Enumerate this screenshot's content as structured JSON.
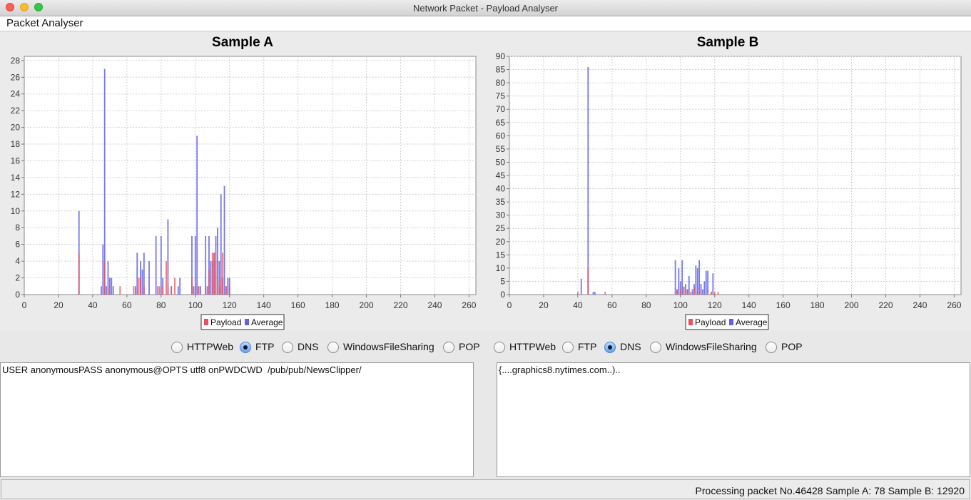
{
  "window": {
    "title": "Network Packet - Payload Analyser"
  },
  "menu": {
    "items": [
      "Packet Analyser"
    ]
  },
  "charts": [
    {
      "title": "Sample A",
      "type": "bar",
      "xlim": [
        0,
        264
      ],
      "ylim": [
        0,
        28.5
      ],
      "xticks": [
        0,
        20,
        40,
        60,
        80,
        100,
        120,
        140,
        160,
        180,
        200,
        220,
        240,
        260
      ],
      "yticks": [
        0,
        2,
        4,
        6,
        8,
        10,
        12,
        14,
        16,
        18,
        20,
        22,
        24,
        26,
        28
      ],
      "grid": true,
      "legend": {
        "position": "bottom-center",
        "entries": [
          "Payload",
          "Average"
        ]
      },
      "series": [
        {
          "name": "Payload",
          "color": "#e8515b",
          "points": [
            [
              32,
              5
            ],
            [
              47,
              4
            ],
            [
              49,
              1
            ],
            [
              56,
              1
            ],
            [
              64,
              1
            ],
            [
              67,
              2
            ],
            [
              68,
              2
            ],
            [
              70,
              1
            ],
            [
              78,
              1
            ],
            [
              79,
              1
            ],
            [
              81,
              1
            ],
            [
              83,
              4
            ],
            [
              84,
              1
            ],
            [
              86,
              1
            ],
            [
              88,
              2
            ],
            [
              98,
              2
            ],
            [
              100,
              1
            ],
            [
              102,
              1
            ],
            [
              106,
              1
            ],
            [
              108,
              3
            ],
            [
              110,
              5
            ],
            [
              111,
              5
            ],
            [
              112,
              4
            ],
            [
              114,
              1
            ],
            [
              115,
              2
            ],
            [
              116,
              5
            ],
            [
              118,
              1
            ],
            [
              120,
              1
            ]
          ]
        },
        {
          "name": "Average",
          "color": "#6060e8",
          "points": [
            [
              32,
              10
            ],
            [
              45,
              1
            ],
            [
              46,
              6
            ],
            [
              47,
              27
            ],
            [
              48,
              1
            ],
            [
              49,
              4
            ],
            [
              50,
              2
            ],
            [
              51,
              2
            ],
            [
              52,
              1
            ],
            [
              65,
              1
            ],
            [
              66,
              5
            ],
            [
              68,
              4
            ],
            [
              69,
              3
            ],
            [
              70,
              5
            ],
            [
              73,
              4
            ],
            [
              77,
              7
            ],
            [
              80,
              7
            ],
            [
              81,
              2
            ],
            [
              84,
              9
            ],
            [
              86,
              1
            ],
            [
              90,
              1
            ],
            [
              91,
              2
            ],
            [
              98,
              7
            ],
            [
              99,
              1
            ],
            [
              100,
              7
            ],
            [
              101,
              19
            ],
            [
              102,
              1
            ],
            [
              103,
              1
            ],
            [
              106,
              7
            ],
            [
              107,
              1
            ],
            [
              108,
              7
            ],
            [
              109,
              4
            ],
            [
              110,
              4
            ],
            [
              111,
              5
            ],
            [
              112,
              7
            ],
            [
              113,
              8
            ],
            [
              114,
              4
            ],
            [
              115,
              12
            ],
            [
              116,
              2
            ],
            [
              117,
              13
            ],
            [
              118,
              1
            ],
            [
              119,
              2
            ],
            [
              120,
              2
            ]
          ]
        }
      ]
    },
    {
      "title": "Sample B",
      "type": "bar",
      "xlim": [
        0,
        264
      ],
      "ylim": [
        0,
        90
      ],
      "xticks": [
        0,
        20,
        40,
        60,
        80,
        100,
        120,
        140,
        160,
        180,
        200,
        220,
        240,
        260
      ],
      "yticks": [
        0,
        5,
        10,
        15,
        20,
        25,
        30,
        35,
        40,
        45,
        50,
        55,
        60,
        65,
        70,
        75,
        80,
        85,
        90
      ],
      "grid": true,
      "legend": {
        "position": "bottom-center",
        "entries": [
          "Payload",
          "Average"
        ]
      },
      "series": [
        {
          "name": "Payload",
          "color": "#e8515b",
          "points": [
            [
              40,
              1
            ],
            [
              46,
              10
            ],
            [
              56,
              1
            ],
            [
              98,
              2
            ],
            [
              100,
              2
            ],
            [
              102,
              3
            ],
            [
              104,
              2
            ],
            [
              106,
              1
            ],
            [
              108,
              3
            ],
            [
              110,
              1
            ],
            [
              112,
              2
            ],
            [
              116,
              2
            ],
            [
              118,
              1
            ],
            [
              120,
              1
            ],
            [
              122,
              1
            ]
          ]
        },
        {
          "name": "Average",
          "color": "#6060e8",
          "points": [
            [
              42,
              6
            ],
            [
              46,
              86
            ],
            [
              49,
              1
            ],
            [
              50,
              1
            ],
            [
              97,
              13
            ],
            [
              98,
              2
            ],
            [
              99,
              10
            ],
            [
              100,
              5
            ],
            [
              101,
              13
            ],
            [
              102,
              3
            ],
            [
              103,
              4
            ],
            [
              104,
              2
            ],
            [
              105,
              7
            ],
            [
              107,
              2
            ],
            [
              108,
              4
            ],
            [
              109,
              11
            ],
            [
              110,
              10
            ],
            [
              111,
              13
            ],
            [
              112,
              4
            ],
            [
              113,
              2
            ],
            [
              114,
              5
            ],
            [
              115,
              9
            ],
            [
              116,
              9
            ],
            [
              118,
              1
            ],
            [
              119,
              8
            ]
          ]
        }
      ]
    }
  ],
  "sampleA": {
    "protocols": [
      "HTTPWeb",
      "FTP",
      "DNS",
      "WindowsFileSharing",
      "POP"
    ],
    "selected": "FTP",
    "payload_text": "USER anonymousPASS anonymous@OPTS utf8 onPWDCWD  /pub/pub/NewsClipper/"
  },
  "sampleB": {
    "protocols": [
      "HTTPWeb",
      "FTP",
      "DNS",
      "WindowsFileSharing",
      "POP"
    ],
    "selected": "DNS",
    "payload_text": "{....graphics8.nytimes.com..).."
  },
  "status": {
    "text": "Processing packet No.46428 Sample A: 78 Sample B: 12920"
  }
}
